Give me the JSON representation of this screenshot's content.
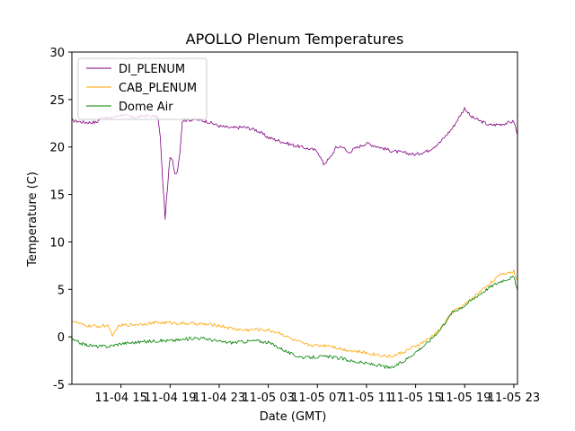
{
  "chart_data": {
    "type": "line",
    "title": "APOLLO Plenum Temperatures",
    "xlabel": "Date (GMT)",
    "ylabel": "Temperature (C)",
    "xlim": [
      11,
      47.3
    ],
    "ylim": [
      -5,
      30
    ],
    "yticks": [
      -5,
      0,
      5,
      10,
      15,
      20,
      25,
      30
    ],
    "xticks": [
      {
        "value": 15,
        "label": "11-04 15"
      },
      {
        "value": 19,
        "label": "11-04 19"
      },
      {
        "value": 23,
        "label": "11-04 23"
      },
      {
        "value": 27,
        "label": "11-05 03"
      },
      {
        "value": 31,
        "label": "11-05 07"
      },
      {
        "value": 35,
        "label": "11-05 11"
      },
      {
        "value": 39,
        "label": "11-05 15"
      },
      {
        "value": 43,
        "label": "11-05 19"
      },
      {
        "value": 47,
        "label": "11-05 23"
      }
    ],
    "legend_position": "top-left",
    "series": [
      {
        "name": "DI_PLENUM",
        "color": "#800080",
        "x": [
          11,
          12,
          13,
          13.5,
          14,
          15,
          16,
          17,
          18,
          18.2,
          18.4,
          18.6,
          18.8,
          19.0,
          19.2,
          19.4,
          19.6,
          19.8,
          20,
          21,
          22,
          23,
          24,
          25,
          26,
          27,
          28,
          29,
          30,
          31,
          31.5,
          32,
          32.5,
          33,
          33.5,
          34,
          35,
          36,
          37,
          38,
          39,
          40,
          41,
          42,
          43,
          43.5,
          44,
          45,
          46,
          47,
          47.3
        ],
        "y": [
          22.8,
          22.6,
          22.6,
          23.2,
          23.0,
          23.4,
          23.1,
          23.3,
          23.2,
          21.0,
          16.5,
          12.5,
          16.0,
          18.9,
          18.5,
          17.2,
          17.5,
          19.5,
          22.8,
          22.9,
          22.7,
          22.2,
          22.0,
          22.1,
          21.8,
          21.0,
          20.6,
          20.2,
          19.9,
          19.6,
          18.2,
          18.8,
          19.9,
          20.1,
          19.4,
          19.8,
          20.4,
          20.0,
          19.6,
          19.4,
          19.2,
          19.6,
          20.5,
          22.0,
          24.1,
          23.2,
          22.9,
          22.3,
          22.4,
          22.7,
          21.3
        ]
      },
      {
        "name": "CAB_PLENUM",
        "color": "#ffa500",
        "x": [
          11,
          12,
          13,
          14,
          14.3,
          14.6,
          15,
          16,
          17,
          18,
          19,
          20,
          21,
          22,
          23,
          24,
          25,
          26,
          27,
          28,
          29,
          30,
          31,
          32,
          33,
          34,
          35,
          36,
          37,
          38,
          39,
          40,
          41,
          42,
          43,
          44,
          45,
          46,
          47,
          47.3
        ],
        "y": [
          1.7,
          1.2,
          1.1,
          1.2,
          -0.1,
          0.9,
          1.2,
          1.3,
          1.4,
          1.5,
          1.5,
          1.4,
          1.4,
          1.3,
          1.2,
          0.9,
          0.7,
          0.8,
          0.7,
          0.4,
          -0.3,
          -0.8,
          -0.9,
          -0.9,
          -1.3,
          -1.5,
          -1.7,
          -1.9,
          -2.1,
          -1.6,
          -1.0,
          -0.3,
          0.8,
          2.6,
          3.4,
          4.5,
          5.6,
          6.6,
          6.9,
          6.0
        ]
      },
      {
        "name": "Dome Air",
        "color": "#008000",
        "x": [
          11,
          12,
          13,
          14,
          15,
          16,
          17,
          18,
          19,
          20,
          21,
          22,
          23,
          24,
          25,
          26,
          27,
          28,
          29,
          30,
          31,
          32,
          33,
          34,
          35,
          36,
          37,
          38,
          39,
          40,
          41,
          42,
          43,
          44,
          45,
          46,
          47,
          47.3
        ],
        "y": [
          -0.3,
          -0.8,
          -1.0,
          -1.0,
          -0.7,
          -0.6,
          -0.5,
          -0.4,
          -0.4,
          -0.3,
          -0.1,
          -0.2,
          -0.5,
          -0.6,
          -0.5,
          -0.4,
          -0.6,
          -1.2,
          -1.9,
          -2.2,
          -2.1,
          -2.1,
          -2.3,
          -2.6,
          -2.8,
          -3.0,
          -3.3,
          -2.6,
          -1.6,
          -0.6,
          0.8,
          2.6,
          3.3,
          4.3,
          5.2,
          5.9,
          6.3,
          4.9
        ]
      }
    ]
  }
}
